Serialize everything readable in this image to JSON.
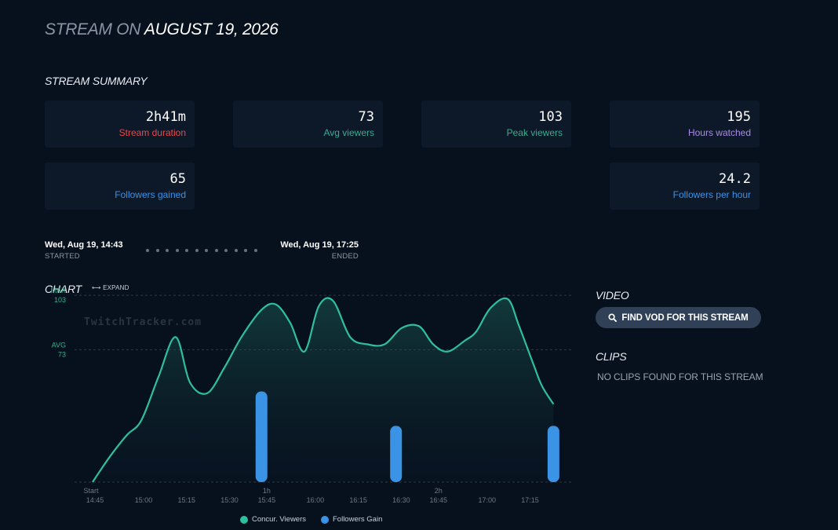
{
  "header": {
    "prefix": "STREAM ON",
    "date": "AUGUST 19, 2026"
  },
  "summary": {
    "heading": "STREAM SUMMARY",
    "cards": [
      {
        "value": "2h41m",
        "label": "Stream duration",
        "color": "#e84a4a"
      },
      {
        "value": "73",
        "label": "Avg viewers",
        "color": "#32b18e"
      },
      {
        "value": "103",
        "label": "Peak viewers",
        "color": "#32b18e"
      },
      {
        "value": "195",
        "label": "Hours watched",
        "color": "#a98be8"
      },
      {
        "value": "65",
        "label": "Followers gained",
        "color": "#3b93e6"
      },
      {
        "value": "24.2",
        "label": "Followers per hour",
        "color": "#3b93e6"
      }
    ]
  },
  "timeline": {
    "start_time": "Wed, Aug 19, 14:43",
    "start_label": "STARTED",
    "end_time": "Wed, Aug 19, 17:25",
    "end_label": "ENDED"
  },
  "chart_section": {
    "heading": "CHART",
    "expand_label": "⟷ EXPAND",
    "watermark": "TwitchTracker.com"
  },
  "video": {
    "heading": "VIDEO",
    "button_label": "FIND VOD FOR THIS STREAM",
    "icon": "search-icon"
  },
  "clips": {
    "heading": "CLIPS",
    "empty_text": "NO CLIPS FOUND FOR THIS STREAM"
  },
  "chart_data": {
    "type": "area",
    "title": "",
    "xlabel": "",
    "ylabel": "",
    "grid": false,
    "legend": "bottom-center",
    "colors": {
      "viewers": "#2ebfa0",
      "followers": "#3b93e6"
    },
    "x_range_minutes": [
      0,
      162
    ],
    "y_range": [
      0,
      110
    ],
    "reference_lines": [
      {
        "label": "MAX",
        "value_label": "103",
        "y": 103
      },
      {
        "label": "AVG",
        "value_label": "73",
        "y": 73
      }
    ],
    "x_ticks": [
      {
        "label": "Start",
        "x": 0,
        "sublabel": "14:45"
      },
      {
        "label": "",
        "x": 17,
        "sublabel": "15:00"
      },
      {
        "label": "",
        "x": 32,
        "sublabel": "15:15"
      },
      {
        "label": "",
        "x": 47,
        "sublabel": "15:30"
      },
      {
        "label": "1h",
        "x": 60,
        "sublabel": "15:45"
      },
      {
        "label": "",
        "x": 77,
        "sublabel": "16:00"
      },
      {
        "label": "",
        "x": 92,
        "sublabel": "16:15"
      },
      {
        "label": "",
        "x": 107,
        "sublabel": "16:30"
      },
      {
        "label": "2h",
        "x": 120,
        "sublabel": "16:45"
      },
      {
        "label": "",
        "x": 137,
        "sublabel": "17:00"
      },
      {
        "label": "",
        "x": 152,
        "sublabel": "17:15"
      }
    ],
    "series": [
      {
        "name": "Concur. Viewers",
        "x": [
          0,
          6,
          12,
          17,
          23,
          29,
          34,
          40,
          46,
          52,
          59,
          64,
          69,
          74,
          79,
          84,
          90,
          96,
          102,
          108,
          114,
          119,
          124,
          130,
          134,
          139,
          145,
          149,
          154,
          157,
          161
        ],
        "values": [
          0,
          14,
          26,
          34,
          58,
          80,
          55,
          49,
          63,
          80,
          95,
          98,
          88,
          72,
          97,
          100,
          80,
          76,
          76,
          85,
          86,
          76,
          72,
          78,
          83,
          96,
          101,
          86,
          65,
          53,
          43
        ]
      },
      {
        "name": "Followers Gain",
        "x": [
          59,
          106,
          161
        ],
        "values": [
          50,
          31,
          31
        ]
      }
    ]
  }
}
